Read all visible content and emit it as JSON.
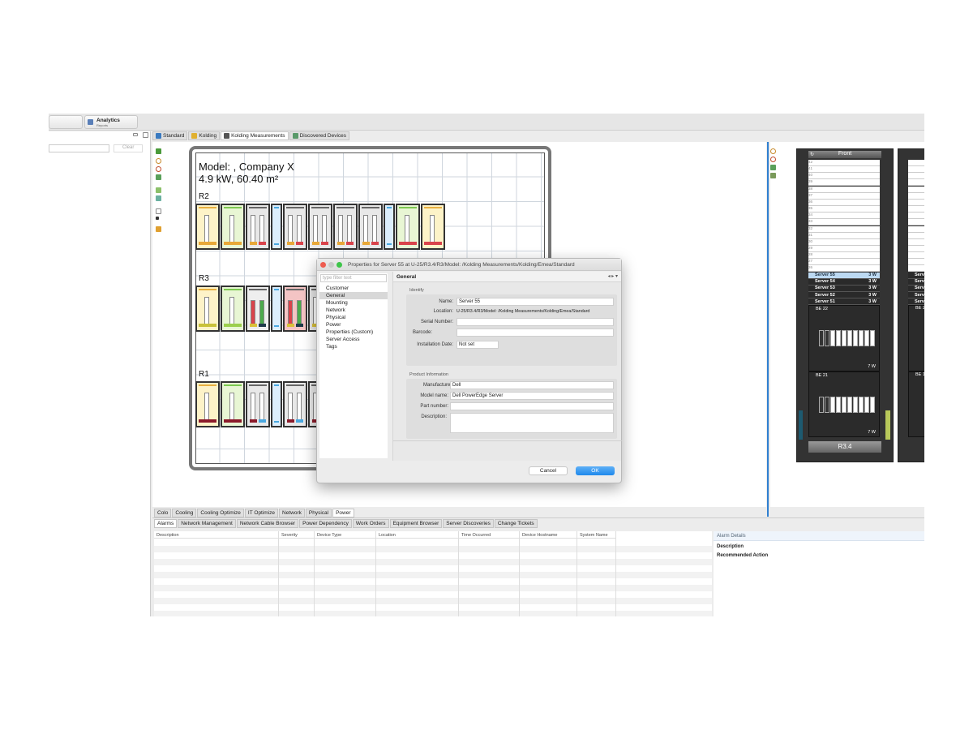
{
  "toolbar": {
    "analytics_title": "Analytics",
    "analytics_sub": "Reports"
  },
  "left_panel": {
    "clear_label": "Clear"
  },
  "editor_tabs": [
    {
      "label": "Standard"
    },
    {
      "label": "Kolding"
    },
    {
      "label": "Kolding Measurements"
    },
    {
      "label": "Discovered Devices"
    }
  ],
  "floorplan": {
    "title_line1": "Model: ,  Company X",
    "title_line2": "4.9 kW,  60.40 m²",
    "rows": [
      {
        "label": "R2",
        "racks": [
          [
            "ups",
            "#e8a838"
          ],
          [
            "pdu",
            "#e8a838"
          ],
          [
            "rack",
            "#e8a838",
            "#d9434b"
          ],
          [
            "cooler"
          ],
          [
            "rack",
            "#e8a838",
            "#d9434b"
          ],
          [
            "rack",
            "#e8a838",
            "#d9434b"
          ],
          [
            "rack",
            "#e8a838",
            "#d9434b"
          ],
          [
            "rack",
            "#e8a838",
            "#d9434b"
          ],
          [
            "cooler"
          ],
          [
            "pdu",
            "#d9434b"
          ],
          [
            "ups",
            "#d9434b"
          ]
        ]
      },
      {
        "label": "R3",
        "racks": [
          [
            "ups",
            "#c9c23a"
          ],
          [
            "pdu",
            "#9ccf4c"
          ],
          [
            "rackhot",
            "#d9c13a",
            "#1e3a4a"
          ],
          [
            "cooler"
          ],
          [
            "rackred",
            "#d9c13a",
            "#1e3a4a"
          ],
          [
            "rack",
            "#d9c13a",
            "#1e3a4a"
          ]
        ]
      },
      {
        "label": "R1",
        "racks": [
          [
            "ups",
            "#8b1a2a"
          ],
          [
            "pdu",
            "#8b1a2a"
          ],
          [
            "rack",
            "#8b1a2a",
            "#4aa8e0"
          ],
          [
            "cooler"
          ],
          [
            "rack",
            "#8b1a2a",
            "#4aa8e0"
          ],
          [
            "rack",
            "#8b1a2a",
            "#4aa8e0"
          ]
        ]
      }
    ]
  },
  "side_tabs": [
    {
      "label": "Colo"
    },
    {
      "label": "Cooling"
    },
    {
      "label": "Cooling Optimize"
    },
    {
      "label": "IT Optimize"
    },
    {
      "label": "Network"
    },
    {
      "label": "Physical"
    },
    {
      "label": "Power"
    }
  ],
  "bottom_tabs": [
    {
      "label": "Alarms"
    },
    {
      "label": "Network Management"
    },
    {
      "label": "Network Cable Browser"
    },
    {
      "label": "Power Dependency"
    },
    {
      "label": "Work Orders"
    },
    {
      "label": "Equipment Browser"
    },
    {
      "label": "Server Discoveries"
    },
    {
      "label": "Change Tickets"
    }
  ],
  "alarm_table": {
    "columns": [
      "Description",
      "Severity",
      "Device Type",
      "Location",
      "Time Occurred",
      "Device Hostname",
      "System Name"
    ]
  },
  "alarm_details": {
    "title": "Alarm Details",
    "description": "Description",
    "action": "Recommended Action"
  },
  "dialog": {
    "title": "Properties for Server 55 at U-25/R3.4/R3/Model: /Kolding Measurements/Kolding/Emea/Standard",
    "filter_placeholder": "type filter text",
    "nav": [
      "Customer",
      "General",
      "Mounting",
      "Network",
      "Physical",
      "Power",
      "Properties (Custom)",
      "Server Access",
      "Tags"
    ],
    "selected_nav": "General",
    "section": "General",
    "identify": "Identify",
    "name_label": "Name:",
    "name_value": "Server 55",
    "location_label": "Location:",
    "location_value": "U-25/R3.4/R3/Model: /Kolding Measurements/Kolding/Emea/Standard",
    "serial_label": "Serial Number:",
    "barcode_label": "Barcode:",
    "install_label": "Installation Date:",
    "install_value": "Not set",
    "product": "Product Information",
    "manufacturer_label": "Manufacturer:",
    "manufacturer_value": "Dell",
    "model_label": "Model name:",
    "model_value": "Dell PowerEdge Server",
    "part_label": "Part number:",
    "description_label": "Description:",
    "cancel": "Cancel",
    "ok": "OK"
  },
  "rack_view": {
    "face": "Front",
    "rack_name": "R3.4",
    "servers": [
      {
        "u": 25,
        "name": "Server 55",
        "power": "3 W",
        "selected": true
      },
      {
        "u": 24,
        "name": "Server 54",
        "power": "3 W"
      },
      {
        "u": 23,
        "name": "Server 53",
        "power": "3 W"
      },
      {
        "u": 22,
        "name": "Server 52",
        "power": "3 W"
      },
      {
        "u": 21,
        "name": "Server 51",
        "power": "3 W"
      }
    ],
    "chassis": [
      {
        "top_u": 20,
        "bottom_u": 11,
        "name": "BE 22",
        "power": "7 W"
      },
      {
        "top_u": 10,
        "bottom_u": 1,
        "name": "BE 21",
        "power": "7 W"
      }
    ],
    "partial_servers": [
      "Server",
      "Server",
      "Server",
      "Server",
      "Server"
    ],
    "partial_chassis": [
      "BE 2",
      "BE 1"
    ]
  },
  "colors": {
    "accent": "#2f8ee8",
    "selection": "#bcd9f2"
  }
}
